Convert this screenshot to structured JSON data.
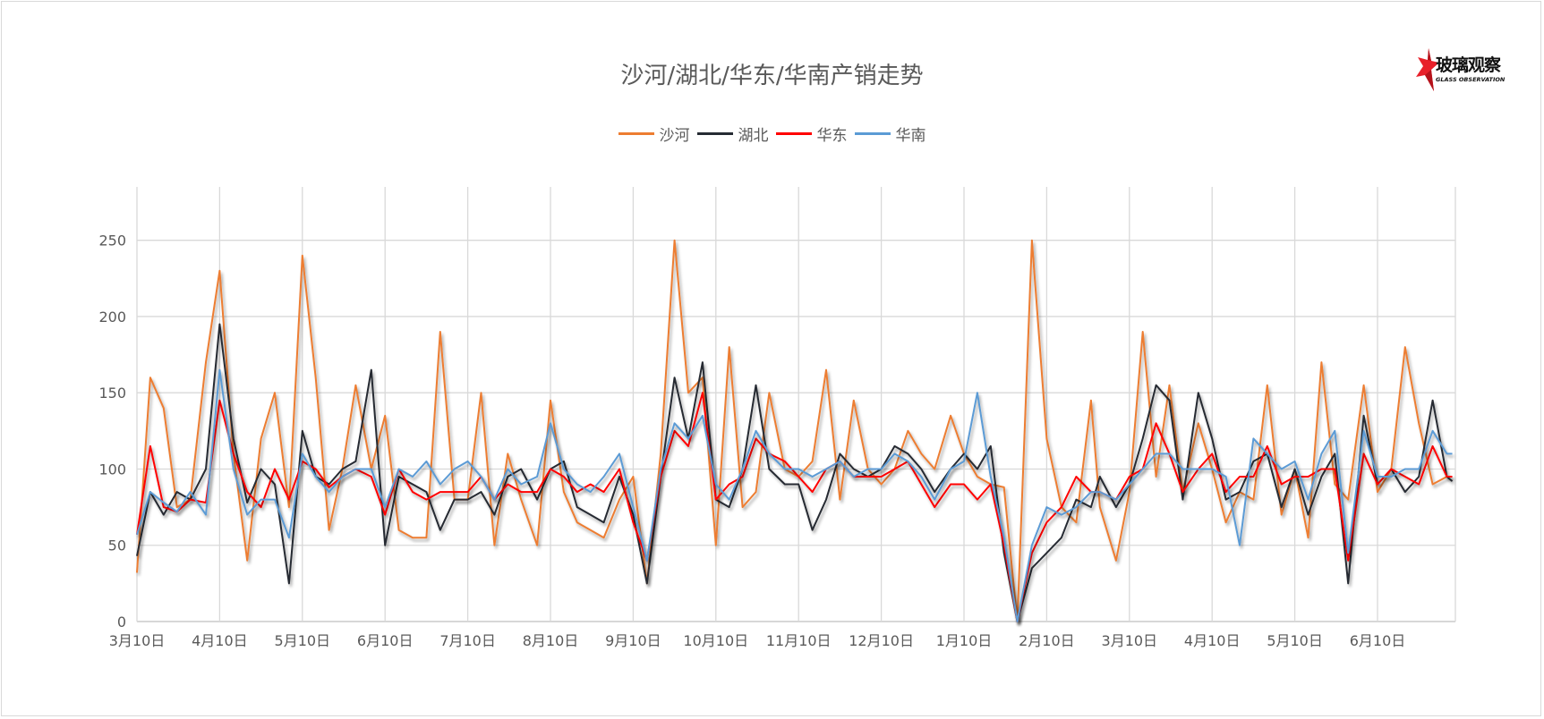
{
  "title": "沙河/湖北/华东/华南产销走势",
  "logo": {
    "cn": "玻璃观察",
    "en": "GLASS OBSERVATION",
    "star_color": "#E8202A"
  },
  "chart_data": {
    "type": "line",
    "title": "沙河/湖北/华东/华南产销走势",
    "xlabel": "",
    "ylabel": "",
    "ylim": [
      0,
      285
    ],
    "y_ticks": [
      0,
      50,
      100,
      150,
      200,
      250
    ],
    "x_tick_labels": [
      "3月10日",
      "4月10日",
      "5月10日",
      "6月10日",
      "7月10日",
      "8月10日",
      "9月10日",
      "10月10日",
      "11月10日",
      "12月10日",
      "1月10日",
      "2月10日",
      "3月10日",
      "4月10日",
      "5月10日",
      "6月10日"
    ],
    "grid": true,
    "legend_position": "top",
    "x": [
      "3/10",
      "3/15",
      "3/20",
      "3/25",
      "3/30",
      "4/5",
      "4/10",
      "4/15",
      "4/20",
      "4/25",
      "4/30",
      "5/5",
      "5/10",
      "5/15",
      "5/20",
      "5/25",
      "5/30",
      "6/5",
      "6/10",
      "6/15",
      "6/20",
      "6/25",
      "6/30",
      "7/5",
      "7/10",
      "7/15",
      "7/20",
      "7/25",
      "7/30",
      "8/5",
      "8/10",
      "8/15",
      "8/20",
      "8/25",
      "8/30",
      "9/5",
      "9/10",
      "9/15",
      "9/20",
      "9/25",
      "9/30",
      "10/5",
      "10/10",
      "10/15",
      "10/20",
      "10/25",
      "10/30",
      "11/5",
      "11/10",
      "11/15",
      "11/20",
      "11/25",
      "11/30",
      "12/5",
      "12/10",
      "12/15",
      "12/20",
      "12/25",
      "12/30",
      "1/5",
      "1/10",
      "1/15",
      "1/20",
      "1/25",
      "1/30",
      "2/5",
      "2/10",
      "2/15",
      "2/20",
      "2/25",
      "2/28",
      "3/5",
      "3/10",
      "3/15",
      "3/20",
      "3/25",
      "3/30",
      "4/5",
      "4/10",
      "4/15",
      "4/20",
      "4/25",
      "4/30",
      "5/5",
      "5/10",
      "5/15",
      "5/20",
      "5/25",
      "5/30",
      "6/5",
      "6/10",
      "6/15",
      "6/20",
      "6/25",
      "6/30",
      "7/5",
      "7/7"
    ],
    "series": [
      {
        "name": "沙河",
        "color": "#ED7D31",
        "values": [
          32,
          160,
          140,
          75,
          80,
          170,
          230,
          110,
          40,
          120,
          150,
          75,
          240,
          160,
          60,
          100,
          155,
          100,
          135,
          60,
          55,
          55,
          190,
          80,
          80,
          150,
          50,
          110,
          80,
          50,
          145,
          85,
          65,
          60,
          55,
          80,
          95,
          25,
          110,
          250,
          150,
          160,
          50,
          180,
          75,
          85,
          150,
          100,
          95,
          105,
          165,
          80,
          145,
          100,
          90,
          100,
          125,
          110,
          100,
          135,
          110,
          95,
          90,
          88,
          0,
          250,
          120,
          75,
          65,
          145,
          75,
          40,
          85,
          190,
          95,
          155,
          85,
          130,
          100,
          65,
          85,
          80,
          155,
          70,
          100,
          55,
          170,
          90,
          80,
          155,
          85,
          100,
          180,
          130,
          90,
          95,
          95
        ]
      },
      {
        "name": "湖北",
        "color": "#262B33",
        "values": [
          43,
          85,
          70,
          85,
          80,
          100,
          195,
          120,
          78,
          100,
          90,
          25,
          125,
          95,
          90,
          100,
          105,
          165,
          50,
          95,
          90,
          85,
          60,
          80,
          80,
          85,
          70,
          95,
          100,
          80,
          100,
          105,
          75,
          70,
          65,
          95,
          70,
          25,
          95,
          160,
          120,
          170,
          80,
          75,
          100,
          155,
          100,
          90,
          90,
          60,
          80,
          110,
          100,
          95,
          100,
          115,
          110,
          100,
          85,
          100,
          110,
          100,
          115,
          45,
          0,
          35,
          45,
          55,
          80,
          75,
          95,
          75,
          90,
          120,
          155,
          145,
          80,
          150,
          120,
          80,
          85,
          105,
          110,
          75,
          100,
          70,
          95,
          110,
          25,
          135,
          90,
          100,
          85,
          95,
          145,
          95,
          92
        ]
      },
      {
        "name": "华东",
        "color": "#FF0000",
        "values": [
          57,
          115,
          75,
          72,
          80,
          78,
          145,
          110,
          85,
          75,
          100,
          80,
          105,
          100,
          88,
          95,
          100,
          95,
          70,
          100,
          85,
          80,
          85,
          85,
          85,
          95,
          80,
          90,
          85,
          85,
          100,
          95,
          85,
          90,
          85,
          100,
          65,
          40,
          95,
          125,
          115,
          150,
          80,
          90,
          95,
          120,
          110,
          105,
          95,
          85,
          100,
          105,
          95,
          95,
          95,
          100,
          105,
          90,
          75,
          90,
          90,
          80,
          90,
          50,
          0,
          45,
          65,
          75,
          95,
          85,
          85,
          80,
          95,
          100,
          130,
          110,
          85,
          100,
          110,
          85,
          95,
          95,
          115,
          90,
          95,
          95,
          100,
          100,
          40,
          110,
          90,
          100,
          95,
          90,
          115,
          95,
          95
        ]
      },
      {
        "name": "华南",
        "color": "#5B9BD5",
        "values": [
          57,
          85,
          78,
          72,
          85,
          70,
          165,
          100,
          70,
          80,
          80,
          55,
          110,
          95,
          85,
          95,
          100,
          100,
          75,
          100,
          95,
          105,
          90,
          100,
          105,
          95,
          80,
          100,
          90,
          95,
          130,
          100,
          90,
          85,
          95,
          110,
          75,
          40,
          100,
          130,
          120,
          135,
          90,
          80,
          100,
          125,
          110,
          100,
          100,
          95,
          100,
          105,
          95,
          100,
          100,
          110,
          105,
          95,
          80,
          100,
          105,
          150,
          95,
          55,
          0,
          50,
          75,
          70,
          75,
          85,
          85,
          80,
          90,
          100,
          110,
          110,
          100,
          100,
          100,
          95,
          50,
          120,
          110,
          100,
          105,
          80,
          110,
          125,
          45,
          125,
          95,
          95,
          100,
          100,
          125,
          110,
          110
        ]
      }
    ]
  }
}
